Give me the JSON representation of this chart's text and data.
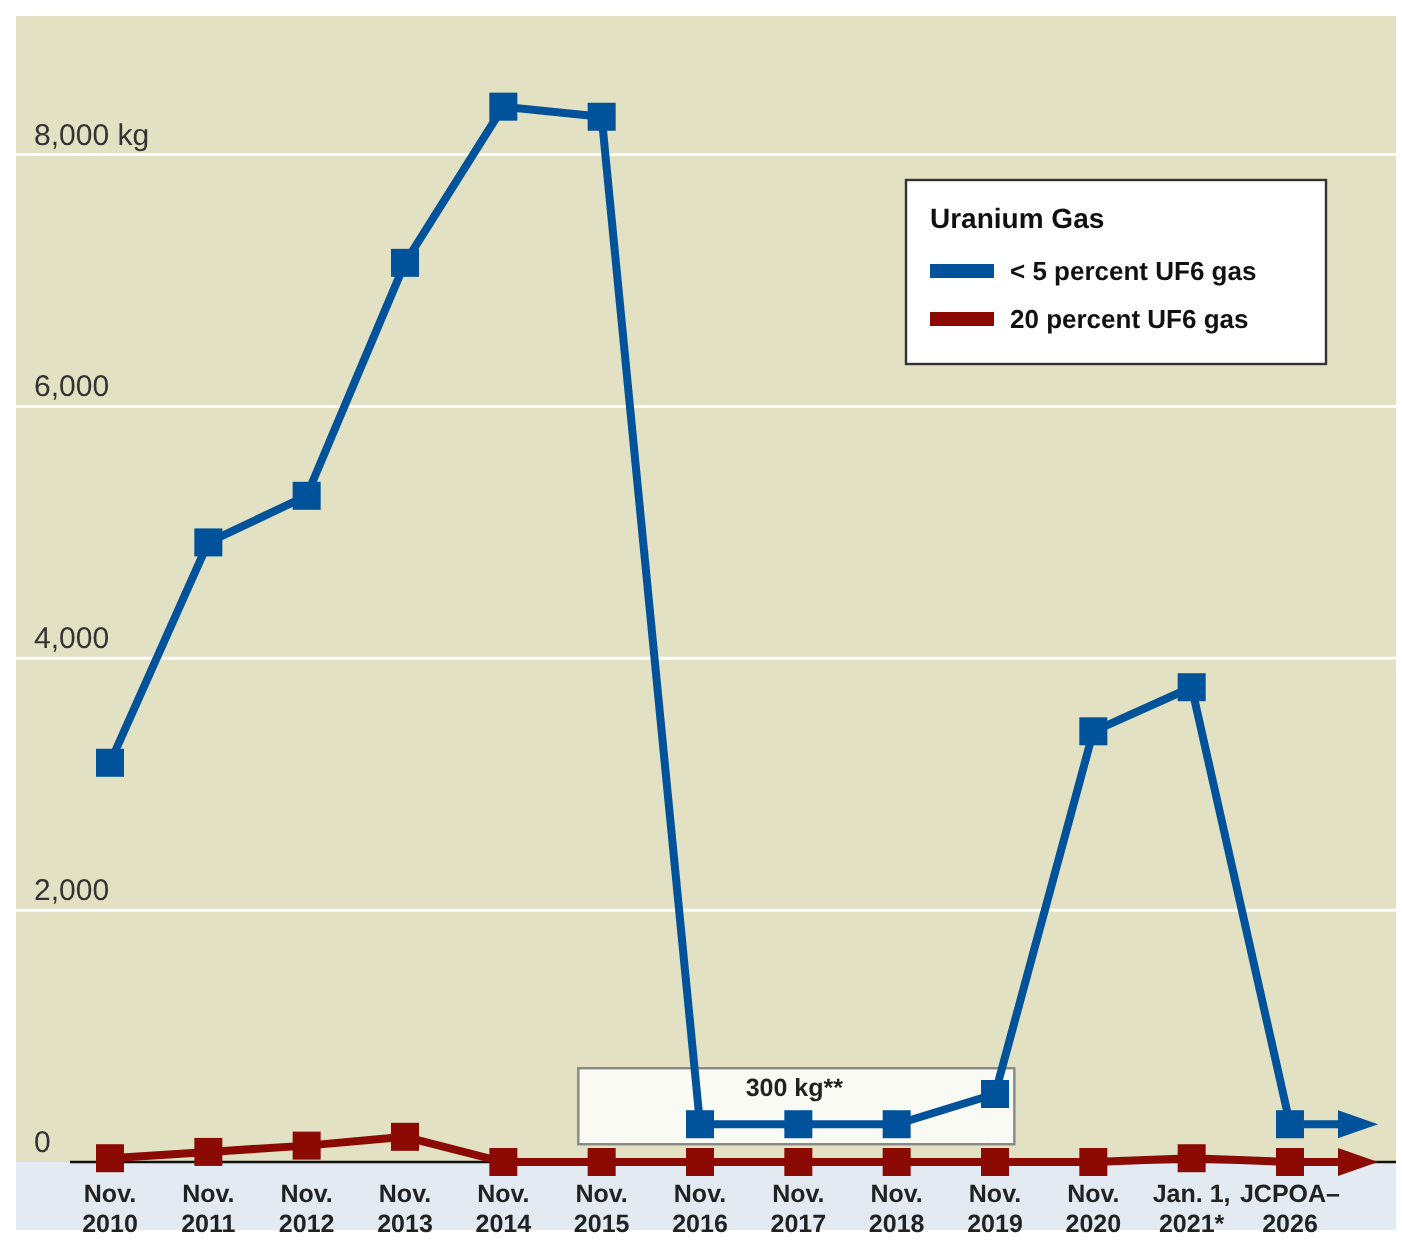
{
  "chart_data": {
    "type": "line",
    "legend_title": "Uranium Gas",
    "categories": [
      "Nov. 2010",
      "Nov. 2011",
      "Nov. 2012",
      "Nov. 2013",
      "Nov. 2014",
      "Nov. 2015",
      "Nov. 2016",
      "Nov. 2017",
      "Nov. 2018",
      "Nov. 2019",
      "Nov. 2020",
      "Jan. 1, 2021*",
      "JCPOA–2026"
    ],
    "series": [
      {
        "name": "< 5 percent UF6 gas",
        "color": "#00529b",
        "values": [
          3170,
          4920,
          5290,
          7140,
          8380,
          8300,
          300,
          300,
          300,
          540,
          3420,
          3770,
          300
        ]
      },
      {
        "name": "20 percent UF6 gas",
        "color": "#8b0a03",
        "values": [
          30,
          80,
          130,
          200,
          0,
          0,
          0,
          0,
          0,
          0,
          0,
          30,
          0
        ]
      }
    ],
    "ylim": [
      0,
      9100
    ],
    "yticks": [
      0,
      {
        "value": 2000,
        "label": "2,000"
      },
      {
        "value": 4000,
        "label": "4,000"
      },
      {
        "value": 6000,
        "label": "6,000"
      },
      {
        "value": 8000,
        "label": "8,000 kg"
      }
    ],
    "grid": "y",
    "legend": "top right",
    "marker": "square",
    "line_style": "solid",
    "annotations": [
      {
        "text": "300 kg**",
        "x": "Nov. 2017",
        "y": 300
      }
    ]
  }
}
